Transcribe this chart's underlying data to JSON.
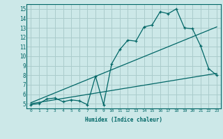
{
  "bg_color": "#cce8e8",
  "grid_color": "#aacccc",
  "line_color": "#006666",
  "xlabel": "Humidex (Indice chaleur)",
  "xlim": [
    -0.5,
    23.5
  ],
  "ylim": [
    4.5,
    15.5
  ],
  "xticks": [
    0,
    1,
    2,
    3,
    4,
    5,
    6,
    7,
    8,
    9,
    10,
    11,
    12,
    13,
    14,
    15,
    16,
    17,
    18,
    19,
    20,
    21,
    22,
    23
  ],
  "yticks": [
    5,
    6,
    7,
    8,
    9,
    10,
    11,
    12,
    13,
    14,
    15
  ],
  "main_x": [
    0,
    1,
    2,
    3,
    4,
    5,
    6,
    7,
    8,
    9,
    10,
    11,
    12,
    13,
    14,
    15,
    16,
    17,
    18,
    19,
    20,
    21,
    22,
    23
  ],
  "main_y": [
    4.9,
    5.0,
    5.5,
    5.6,
    5.2,
    5.4,
    5.3,
    4.9,
    7.9,
    4.9,
    9.2,
    10.7,
    11.7,
    11.6,
    13.1,
    13.3,
    14.7,
    14.5,
    15.0,
    13.0,
    12.9,
    11.1,
    8.7,
    8.0
  ],
  "line2_x": [
    0,
    23
  ],
  "line2_y": [
    5.0,
    8.2
  ],
  "line3_x": [
    0,
    23
  ],
  "line3_y": [
    5.1,
    13.1
  ],
  "xlabel_fontsize": 5.5,
  "ylabel_fontsize": 5.5,
  "tick_fontsize_x": 4.5,
  "tick_fontsize_y": 5.5
}
